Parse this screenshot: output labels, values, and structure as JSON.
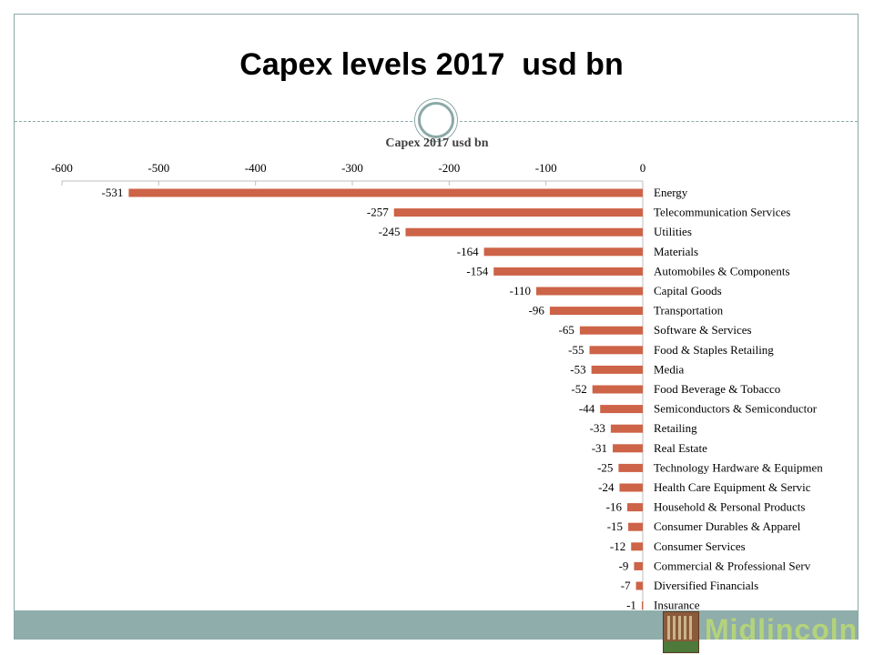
{
  "slide": {
    "title": "Capex levels 2017  usd bn"
  },
  "logo": {
    "text": "Midlincoln"
  },
  "colors": {
    "bar": "#cd6347",
    "accent": "#8aa9a7",
    "band": "#8fadab"
  },
  "chart_data": {
    "type": "bar",
    "orientation": "horizontal",
    "title": "Capex 2017 usd bn",
    "xlabel": "",
    "ylabel": "",
    "xlim": [
      -600,
      0
    ],
    "x_ticks": [
      -600,
      -500,
      -400,
      -300,
      -200,
      -100,
      0
    ],
    "axis_position": "top",
    "grid": false,
    "categories": [
      "Energy",
      "Telecommunication Services",
      "Utilities",
      "Materials",
      "Automobiles & Components",
      "Capital Goods",
      "Transportation",
      "Software & Services",
      "Food & Staples Retailing",
      "Media",
      "Food Beverage & Tobacco",
      "Semiconductors & Semiconductor",
      "Retailing",
      "Real Estate",
      "Technology Hardware & Equipmen",
      "Health Care Equipment & Servic",
      "Household & Personal Products",
      "Consumer Durables & Apparel",
      "Consumer Services",
      "Commercial & Professional Serv",
      "Diversified Financials",
      "Insurance"
    ],
    "values": [
      -531,
      -257,
      -245,
      -164,
      -154,
      -110,
      -96,
      -65,
      -55,
      -53,
      -52,
      -44,
      -33,
      -31,
      -25,
      -24,
      -16,
      -15,
      -12,
      -9,
      -7,
      -1
    ]
  }
}
